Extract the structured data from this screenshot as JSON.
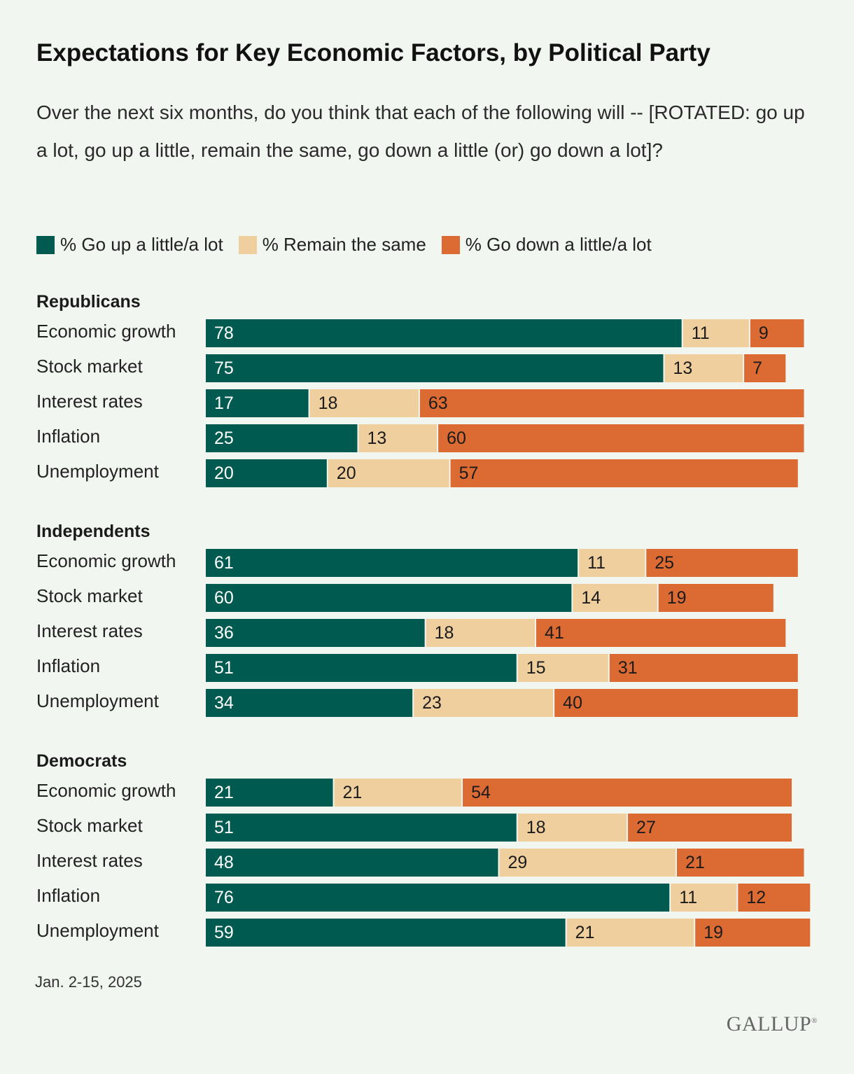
{
  "header": {
    "title": "Expectations for Key Economic Factors, by Political Party",
    "subtitle": "Over the next six months, do you think that each of the following will -- [ROTATED: go up a lot, go up a little, remain the same, go down a little (or) go down a lot]?"
  },
  "footer": {
    "date": "Jan. 2-15, 2025",
    "logo": "GALLUP"
  },
  "chart_data": {
    "type": "bar",
    "orientation": "horizontal",
    "stacked": true,
    "xlim": [
      0,
      100
    ],
    "grid": false,
    "legend_placement": "top-left",
    "series": [
      {
        "name": "% Go up a little/a lot",
        "color": "#005a50"
      },
      {
        "name": "% Remain the same",
        "color": "#f0cf9f"
      },
      {
        "name": "% Go down a little/a lot",
        "color": "#db6a33"
      }
    ],
    "groups": [
      {
        "name": "Republicans",
        "rows": [
          {
            "label": "Economic growth",
            "values": [
              78,
              11,
              9
            ]
          },
          {
            "label": "Stock market",
            "values": [
              75,
              13,
              7
            ]
          },
          {
            "label": "Interest rates",
            "values": [
              17,
              18,
              63
            ]
          },
          {
            "label": "Inflation",
            "values": [
              25,
              13,
              60
            ]
          },
          {
            "label": "Unemployment",
            "values": [
              20,
              20,
              57
            ]
          }
        ]
      },
      {
        "name": "Independents",
        "rows": [
          {
            "label": "Economic growth",
            "values": [
              61,
              11,
              25
            ]
          },
          {
            "label": "Stock market",
            "values": [
              60,
              14,
              19
            ]
          },
          {
            "label": "Interest rates",
            "values": [
              36,
              18,
              41
            ]
          },
          {
            "label": "Inflation",
            "values": [
              51,
              15,
              31
            ]
          },
          {
            "label": "Unemployment",
            "values": [
              34,
              23,
              40
            ]
          }
        ]
      },
      {
        "name": "Democrats",
        "rows": [
          {
            "label": "Economic growth",
            "values": [
              21,
              21,
              54
            ]
          },
          {
            "label": "Stock market",
            "values": [
              51,
              18,
              27
            ]
          },
          {
            "label": "Interest rates",
            "values": [
              48,
              29,
              21
            ]
          },
          {
            "label": "Inflation",
            "values": [
              76,
              11,
              12
            ]
          },
          {
            "label": "Unemployment",
            "values": [
              59,
              21,
              19
            ]
          }
        ]
      }
    ]
  }
}
